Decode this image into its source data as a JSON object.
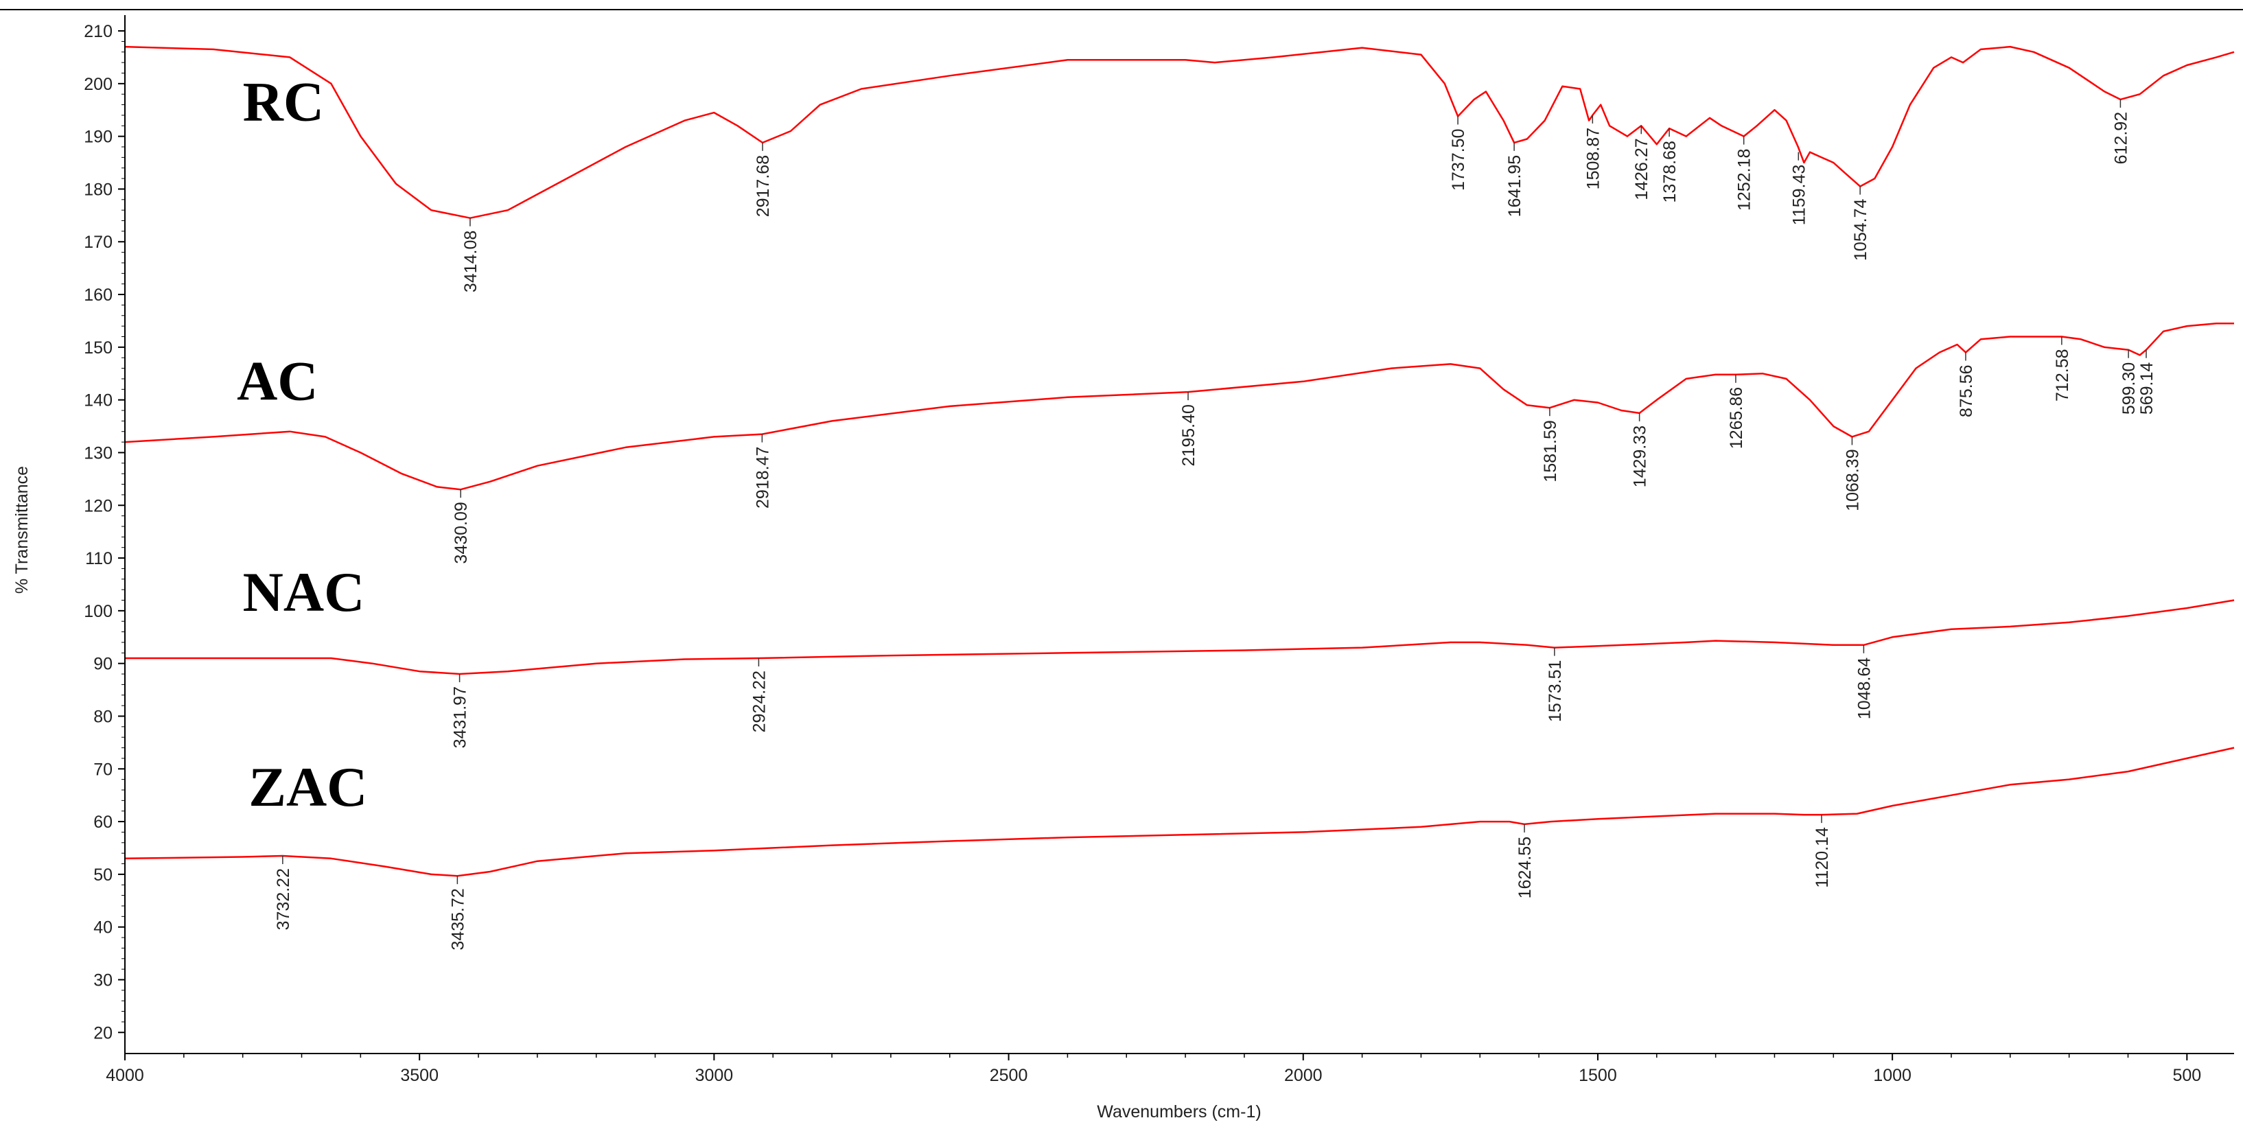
{
  "chart_data": {
    "type": "line",
    "xlabel": "Wavenumbers (cm-1)",
    "ylabel": "% Transmittance",
    "xlim": [
      4000,
      420
    ],
    "ylim": [
      16,
      213
    ],
    "x_ticks": [
      4000,
      3500,
      3000,
      2500,
      2000,
      1500,
      1000,
      500
    ],
    "y_ticks": [
      20,
      30,
      40,
      50,
      60,
      70,
      80,
      90,
      100,
      110,
      120,
      130,
      140,
      150,
      160,
      170,
      180,
      190,
      200,
      210
    ],
    "grid": false,
    "line_color": "#ff0000",
    "series": [
      {
        "name": "RC",
        "label_position": [
          3800,
          193
        ],
        "points": [
          [
            4000,
            207
          ],
          [
            3850,
            206.5
          ],
          [
            3720,
            205
          ],
          [
            3650,
            200
          ],
          [
            3600,
            190
          ],
          [
            3540,
            181
          ],
          [
            3480,
            176
          ],
          [
            3414,
            174.5
          ],
          [
            3350,
            176
          ],
          [
            3250,
            182
          ],
          [
            3150,
            188
          ],
          [
            3050,
            193
          ],
          [
            3000,
            194.5
          ],
          [
            2960,
            192
          ],
          [
            2917.68,
            188.8
          ],
          [
            2870,
            191
          ],
          [
            2820,
            196
          ],
          [
            2750,
            199
          ],
          [
            2600,
            201.5
          ],
          [
            2400,
            204.5
          ],
          [
            2200,
            204.5
          ],
          [
            2150,
            204
          ],
          [
            2050,
            205
          ],
          [
            1900,
            206.8
          ],
          [
            1800,
            205.5
          ],
          [
            1760,
            200
          ],
          [
            1737.5,
            193.8
          ],
          [
            1710,
            197
          ],
          [
            1690,
            198.5
          ],
          [
            1660,
            193
          ],
          [
            1641.95,
            188.8
          ],
          [
            1620,
            189.5
          ],
          [
            1590,
            193
          ],
          [
            1560,
            199.5
          ],
          [
            1530,
            199
          ],
          [
            1515,
            193
          ],
          [
            1508.87,
            194
          ],
          [
            1495,
            196
          ],
          [
            1480,
            192
          ],
          [
            1450,
            190
          ],
          [
            1426.27,
            192
          ],
          [
            1400,
            188.5
          ],
          [
            1378.68,
            191.5
          ],
          [
            1350,
            190
          ],
          [
            1310,
            193.5
          ],
          [
            1290,
            192
          ],
          [
            1252.18,
            190
          ],
          [
            1230,
            192
          ],
          [
            1200,
            195
          ],
          [
            1180,
            193
          ],
          [
            1160,
            188
          ],
          [
            1150,
            185
          ],
          [
            1140,
            187
          ],
          [
            1120,
            186
          ],
          [
            1100,
            185
          ],
          [
            1080,
            183
          ],
          [
            1054.74,
            180.5
          ],
          [
            1030,
            182
          ],
          [
            1000,
            188
          ],
          [
            970,
            196
          ],
          [
            930,
            203
          ],
          [
            900,
            205
          ],
          [
            880,
            204
          ],
          [
            850,
            206.5
          ],
          [
            800,
            207
          ],
          [
            760,
            206
          ],
          [
            700,
            203
          ],
          [
            660,
            200
          ],
          [
            640,
            198.5
          ],
          [
            612.92,
            197
          ],
          [
            580,
            198
          ],
          [
            540,
            201.5
          ],
          [
            500,
            203.5
          ],
          [
            450,
            205
          ],
          [
            420,
            206
          ]
        ],
        "peaks": [
          {
            "x": 3414.08,
            "y": 174.5,
            "label": "3414.08"
          },
          {
            "x": 2917.68,
            "y": 188.8,
            "label": "2917.68"
          },
          {
            "x": 1737.5,
            "y": 193.8,
            "label": "1737.50"
          },
          {
            "x": 1641.95,
            "y": 188.8,
            "label": "1641.95"
          },
          {
            "x": 1508.87,
            "y": 194.0,
            "label": "1508.87"
          },
          {
            "x": 1426.27,
            "y": 192.0,
            "label": "1426.27"
          },
          {
            "x": 1378.68,
            "y": 191.5,
            "label": "1378.68"
          },
          {
            "x": 1252.18,
            "y": 190.0,
            "label": "1252.18"
          },
          {
            "x": 1159.43,
            "y": 187.0,
            "label": "1159.43"
          },
          {
            "x": 1054.74,
            "y": 180.5,
            "label": "1054.74"
          },
          {
            "x": 612.92,
            "y": 197.0,
            "label": "612.92"
          }
        ]
      },
      {
        "name": "AC",
        "label_position": [
          3810,
          140
        ],
        "points": [
          [
            4000,
            132
          ],
          [
            3850,
            133
          ],
          [
            3720,
            134
          ],
          [
            3660,
            133
          ],
          [
            3600,
            130
          ],
          [
            3530,
            126
          ],
          [
            3470,
            123.5
          ],
          [
            3430.09,
            123
          ],
          [
            3380,
            124.5
          ],
          [
            3300,
            127.5
          ],
          [
            3150,
            131
          ],
          [
            3000,
            133
          ],
          [
            2918.47,
            133.5
          ],
          [
            2800,
            136
          ],
          [
            2600,
            138.8
          ],
          [
            2400,
            140.5
          ],
          [
            2195.4,
            141.5
          ],
          [
            2000,
            143.5
          ],
          [
            1850,
            146
          ],
          [
            1750,
            146.8
          ],
          [
            1700,
            146
          ],
          [
            1660,
            142
          ],
          [
            1620,
            139
          ],
          [
            1581.59,
            138.5
          ],
          [
            1540,
            140
          ],
          [
            1500,
            139.5
          ],
          [
            1460,
            138
          ],
          [
            1429.33,
            137.5
          ],
          [
            1400,
            140
          ],
          [
            1350,
            144
          ],
          [
            1300,
            144.8
          ],
          [
            1265.86,
            144.8
          ],
          [
            1220,
            145
          ],
          [
            1180,
            144
          ],
          [
            1140,
            140
          ],
          [
            1100,
            135
          ],
          [
            1068.39,
            133
          ],
          [
            1040,
            134
          ],
          [
            1000,
            140
          ],
          [
            960,
            146
          ],
          [
            920,
            149
          ],
          [
            890,
            150.5
          ],
          [
            875.56,
            149
          ],
          [
            850,
            151.5
          ],
          [
            800,
            152
          ],
          [
            750,
            152
          ],
          [
            712.58,
            152
          ],
          [
            680,
            151.5
          ],
          [
            640,
            150
          ],
          [
            599.3,
            149.5
          ],
          [
            580,
            148.5
          ],
          [
            569.14,
            149.5
          ],
          [
            540,
            153
          ],
          [
            500,
            154
          ],
          [
            450,
            154.5
          ],
          [
            420,
            154.5
          ]
        ],
        "peaks": [
          {
            "x": 3430.09,
            "y": 123.0,
            "label": "3430.09"
          },
          {
            "x": 2918.47,
            "y": 133.5,
            "label": "2918.47"
          },
          {
            "x": 2195.4,
            "y": 141.5,
            "label": "2195.40"
          },
          {
            "x": 1581.59,
            "y": 138.5,
            "label": "1581.59"
          },
          {
            "x": 1429.33,
            "y": 137.5,
            "label": "1429.33"
          },
          {
            "x": 1265.86,
            "y": 144.8,
            "label": "1265.86"
          },
          {
            "x": 1068.39,
            "y": 133.0,
            "label": "1068.39"
          },
          {
            "x": 875.56,
            "y": 149.0,
            "label": "875.56"
          },
          {
            "x": 712.58,
            "y": 152.0,
            "label": "712.58"
          },
          {
            "x": 599.3,
            "y": 149.5,
            "label": "599.30"
          },
          {
            "x": 569.14,
            "y": 149.5,
            "label": "569.14"
          }
        ]
      },
      {
        "name": "NAC",
        "label_position": [
          3800,
          100
        ],
        "points": [
          [
            4000,
            91
          ],
          [
            3800,
            91
          ],
          [
            3650,
            91
          ],
          [
            3580,
            90
          ],
          [
            3500,
            88.5
          ],
          [
            3431.97,
            88
          ],
          [
            3350,
            88.5
          ],
          [
            3200,
            90
          ],
          [
            3050,
            90.8
          ],
          [
            2924.22,
            91
          ],
          [
            2700,
            91.5
          ],
          [
            2400,
            92
          ],
          [
            2100,
            92.5
          ],
          [
            1900,
            93
          ],
          [
            1750,
            94
          ],
          [
            1700,
            94
          ],
          [
            1620,
            93.5
          ],
          [
            1573.51,
            93
          ],
          [
            1500,
            93.3
          ],
          [
            1350,
            94
          ],
          [
            1300,
            94.3
          ],
          [
            1200,
            94
          ],
          [
            1100,
            93.5
          ],
          [
            1048.64,
            93.5
          ],
          [
            1000,
            95
          ],
          [
            900,
            96.5
          ],
          [
            800,
            97
          ],
          [
            700,
            97.8
          ],
          [
            600,
            99
          ],
          [
            500,
            100.5
          ],
          [
            420,
            102
          ]
        ],
        "peaks": [
          {
            "x": 3431.97,
            "y": 88.0,
            "label": "3431.97"
          },
          {
            "x": 2924.22,
            "y": 91.0,
            "label": "2924.22"
          },
          {
            "x": 1573.51,
            "y": 93.0,
            "label": "1573.51"
          },
          {
            "x": 1048.64,
            "y": 93.5,
            "label": "1048.64"
          }
        ]
      },
      {
        "name": "ZAC",
        "label_position": [
          3790,
          63
        ],
        "points": [
          [
            4000,
            53
          ],
          [
            3800,
            53.3
          ],
          [
            3732.22,
            53.5
          ],
          [
            3650,
            53
          ],
          [
            3560,
            51.5
          ],
          [
            3480,
            50
          ],
          [
            3435.72,
            49.7
          ],
          [
            3380,
            50.5
          ],
          [
            3300,
            52.5
          ],
          [
            3150,
            54
          ],
          [
            3000,
            54.5
          ],
          [
            2800,
            55.5
          ],
          [
            2600,
            56.3
          ],
          [
            2400,
            57
          ],
          [
            2200,
            57.5
          ],
          [
            2000,
            58
          ],
          [
            1800,
            59
          ],
          [
            1700,
            60
          ],
          [
            1650,
            60
          ],
          [
            1624.55,
            59.5
          ],
          [
            1580,
            60
          ],
          [
            1500,
            60.5
          ],
          [
            1400,
            61
          ],
          [
            1300,
            61.5
          ],
          [
            1200,
            61.5
          ],
          [
            1150,
            61.3
          ],
          [
            1120.14,
            61.3
          ],
          [
            1060,
            61.5
          ],
          [
            1000,
            63
          ],
          [
            900,
            65
          ],
          [
            800,
            67
          ],
          [
            700,
            68
          ],
          [
            600,
            69.5
          ],
          [
            500,
            72
          ],
          [
            420,
            74
          ]
        ],
        "peaks": [
          {
            "x": 3732.22,
            "y": 53.5,
            "label": "3732.22"
          },
          {
            "x": 3435.72,
            "y": 49.7,
            "label": "3435.72"
          },
          {
            "x": 1624.55,
            "y": 59.5,
            "label": "1624.55"
          },
          {
            "x": 1120.14,
            "y": 61.3,
            "label": "1120.14"
          }
        ]
      }
    ]
  }
}
